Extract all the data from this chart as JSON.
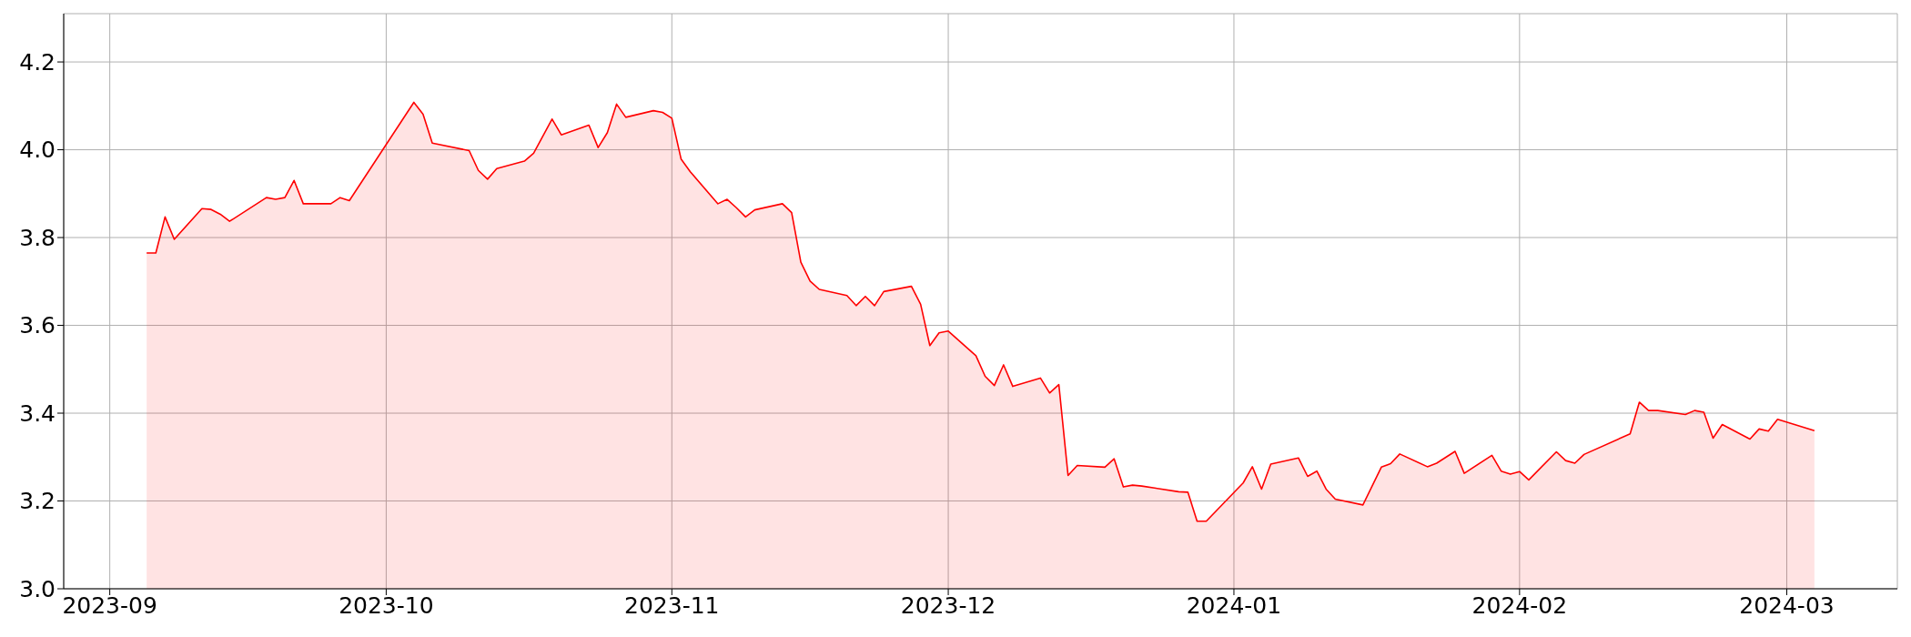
{
  "chart_data": {
    "type": "area",
    "x": [
      "2023-09-05",
      "2023-09-06",
      "2023-09-07",
      "2023-09-08",
      "2023-09-11",
      "2023-09-12",
      "2023-09-13",
      "2023-09-14",
      "2023-09-18",
      "2023-09-19",
      "2023-09-20",
      "2023-09-21",
      "2023-09-22",
      "2023-09-25",
      "2023-09-26",
      "2023-09-27",
      "2023-10-04",
      "2023-10-05",
      "2023-10-06",
      "2023-10-10",
      "2023-10-11",
      "2023-10-12",
      "2023-10-13",
      "2023-10-16",
      "2023-10-17",
      "2023-10-19",
      "2023-10-20",
      "2023-10-23",
      "2023-10-24",
      "2023-10-25",
      "2023-10-26",
      "2023-10-27",
      "2023-10-30",
      "2023-10-31",
      "2023-11-01",
      "2023-11-02",
      "2023-11-03",
      "2023-11-06",
      "2023-11-07",
      "2023-11-08",
      "2023-11-09",
      "2023-11-10",
      "2023-11-13",
      "2023-11-14",
      "2023-11-15",
      "2023-11-16",
      "2023-11-17",
      "2023-11-20",
      "2023-11-21",
      "2023-11-22",
      "2023-11-23",
      "2023-11-24",
      "2023-11-27",
      "2023-11-28",
      "2023-11-29",
      "2023-11-30",
      "2023-12-01",
      "2023-12-04",
      "2023-12-05",
      "2023-12-06",
      "2023-12-07",
      "2023-12-08",
      "2023-12-11",
      "2023-12-12",
      "2023-12-13",
      "2023-12-14",
      "2023-12-15",
      "2023-12-18",
      "2023-12-19",
      "2023-12-20",
      "2023-12-21",
      "2023-12-22",
      "2023-12-26",
      "2023-12-27",
      "2023-12-28",
      "2023-12-29",
      "2024-01-02",
      "2024-01-03",
      "2024-01-04",
      "2024-01-05",
      "2024-01-08",
      "2024-01-09",
      "2024-01-10",
      "2024-01-11",
      "2024-01-12",
      "2024-01-15",
      "2024-01-17",
      "2024-01-18",
      "2024-01-19",
      "2024-01-22",
      "2024-01-23",
      "2024-01-25",
      "2024-01-26",
      "2024-01-29",
      "2024-01-30",
      "2024-01-31",
      "2024-02-01",
      "2024-02-02",
      "2024-02-05",
      "2024-02-06",
      "2024-02-07",
      "2024-02-08",
      "2024-02-13",
      "2024-02-14",
      "2024-02-15",
      "2024-02-16",
      "2024-02-19",
      "2024-02-20",
      "2024-02-21",
      "2024-02-22",
      "2024-02-23",
      "2024-02-26",
      "2024-02-27",
      "2024-02-28",
      "2024-02-29",
      "2024-03-04"
    ],
    "series": [
      {
        "color": "#ff0000",
        "values": [
          3.765,
          3.765,
          3.847,
          3.796,
          3.866,
          3.864,
          3.853,
          3.837,
          3.891,
          3.887,
          3.891,
          3.93,
          3.877,
          3.877,
          3.891,
          3.884,
          4.108,
          4.081,
          4.015,
          3.998,
          3.953,
          3.933,
          3.957,
          3.974,
          3.992,
          4.07,
          4.034,
          4.056,
          4.005,
          4.039,
          4.104,
          4.074,
          4.089,
          4.085,
          4.072,
          3.979,
          3.95,
          3.877,
          3.887,
          3.868,
          3.847,
          3.863,
          3.877,
          3.857,
          3.744,
          3.701,
          3.682,
          3.668,
          3.645,
          3.666,
          3.645,
          3.677,
          3.689,
          3.648,
          3.554,
          3.583,
          3.587,
          3.531,
          3.484,
          3.463,
          3.51,
          3.461,
          3.48,
          3.446,
          3.465,
          3.258,
          3.281,
          3.277,
          3.296,
          3.232,
          3.236,
          3.234,
          3.221,
          3.22,
          3.154,
          3.154,
          3.241,
          3.278,
          3.227,
          3.284,
          3.298,
          3.256,
          3.268,
          3.227,
          3.204,
          3.191,
          3.277,
          3.285,
          3.307,
          3.278,
          3.286,
          3.313,
          3.263,
          3.304,
          3.268,
          3.261,
          3.267,
          3.248,
          3.312,
          3.292,
          3.286,
          3.306,
          3.353,
          3.425,
          3.406,
          3.406,
          3.397,
          3.406,
          3.402,
          3.343,
          3.374,
          3.341,
          3.364,
          3.359,
          3.386,
          3.36
        ]
      }
    ],
    "xlim": [
      "2023-08-27",
      "2024-03-13"
    ],
    "xticks": [
      {
        "value": "2023-09-01",
        "label": "2023-09"
      },
      {
        "value": "2023-10-01",
        "label": "2023-10"
      },
      {
        "value": "2023-11-01",
        "label": "2023-11"
      },
      {
        "value": "2023-12-01",
        "label": "2023-12"
      },
      {
        "value": "2024-01-01",
        "label": "2024-01"
      },
      {
        "value": "2024-02-01",
        "label": "2024-02"
      },
      {
        "value": "2024-03-01",
        "label": "2024-03"
      }
    ],
    "ylim": [
      3.0,
      4.31
    ],
    "yticks": [
      {
        "value": 3.0,
        "label": "3.0"
      },
      3.2,
      3.4,
      3.6,
      3.8,
      {
        "value": 4.0,
        "label": "4.0"
      },
      4.2
    ],
    "grid": true
  }
}
